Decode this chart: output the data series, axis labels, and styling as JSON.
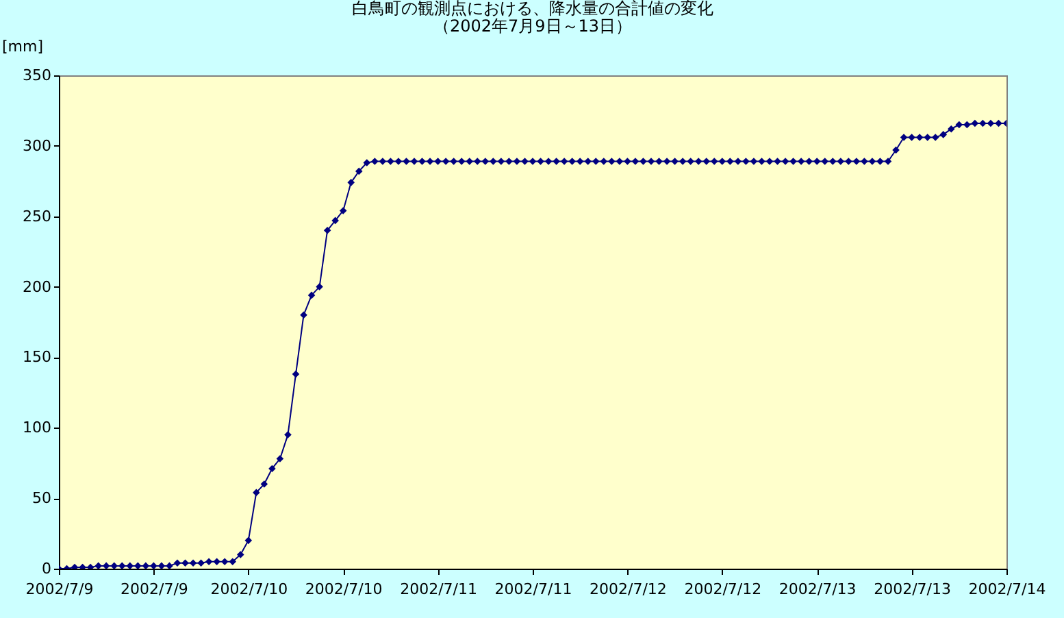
{
  "chart_data": {
    "type": "line",
    "title": "白鳥町の観測点における、降水量の合計値の変化",
    "subtitle": "（2002年7月9日～13日）",
    "ylabel": "[mm]",
    "x": [
      "2002-07-09T00:00",
      "2002-07-09T01:00",
      "2002-07-09T02:00",
      "2002-07-09T03:00",
      "2002-07-09T04:00",
      "2002-07-09T05:00",
      "2002-07-09T06:00",
      "2002-07-09T07:00",
      "2002-07-09T08:00",
      "2002-07-09T09:00",
      "2002-07-09T10:00",
      "2002-07-09T11:00",
      "2002-07-09T12:00",
      "2002-07-09T13:00",
      "2002-07-09T14:00",
      "2002-07-09T15:00",
      "2002-07-09T16:00",
      "2002-07-09T17:00",
      "2002-07-09T18:00",
      "2002-07-09T19:00",
      "2002-07-09T20:00",
      "2002-07-09T21:00",
      "2002-07-09T22:00",
      "2002-07-09T23:00",
      "2002-07-10T00:00",
      "2002-07-10T01:00",
      "2002-07-10T02:00",
      "2002-07-10T03:00",
      "2002-07-10T04:00",
      "2002-07-10T05:00",
      "2002-07-10T06:00",
      "2002-07-10T07:00",
      "2002-07-10T08:00",
      "2002-07-10T09:00",
      "2002-07-10T10:00",
      "2002-07-10T11:00",
      "2002-07-10T12:00",
      "2002-07-10T13:00",
      "2002-07-10T14:00",
      "2002-07-10T15:00",
      "2002-07-10T16:00",
      "2002-07-10T17:00",
      "2002-07-10T18:00",
      "2002-07-10T19:00",
      "2002-07-10T20:00",
      "2002-07-10T21:00",
      "2002-07-10T22:00",
      "2002-07-10T23:00",
      "2002-07-11T00:00",
      "2002-07-11T01:00",
      "2002-07-11T02:00",
      "2002-07-11T03:00",
      "2002-07-11T04:00",
      "2002-07-11T05:00",
      "2002-07-11T06:00",
      "2002-07-11T07:00",
      "2002-07-11T08:00",
      "2002-07-11T09:00",
      "2002-07-11T10:00",
      "2002-07-11T11:00",
      "2002-07-11T12:00",
      "2002-07-11T13:00",
      "2002-07-11T14:00",
      "2002-07-11T15:00",
      "2002-07-11T16:00",
      "2002-07-11T17:00",
      "2002-07-11T18:00",
      "2002-07-11T19:00",
      "2002-07-11T20:00",
      "2002-07-11T21:00",
      "2002-07-11T22:00",
      "2002-07-11T23:00",
      "2002-07-12T00:00",
      "2002-07-12T01:00",
      "2002-07-12T02:00",
      "2002-07-12T03:00",
      "2002-07-12T04:00",
      "2002-07-12T05:00",
      "2002-07-12T06:00",
      "2002-07-12T07:00",
      "2002-07-12T08:00",
      "2002-07-12T09:00",
      "2002-07-12T10:00",
      "2002-07-12T11:00",
      "2002-07-12T12:00",
      "2002-07-12T13:00",
      "2002-07-12T14:00",
      "2002-07-12T15:00",
      "2002-07-12T16:00",
      "2002-07-12T17:00",
      "2002-07-12T18:00",
      "2002-07-12T19:00",
      "2002-07-12T20:00",
      "2002-07-12T21:00",
      "2002-07-12T22:00",
      "2002-07-12T23:00",
      "2002-07-13T00:00",
      "2002-07-13T01:00",
      "2002-07-13T02:00",
      "2002-07-13T03:00",
      "2002-07-13T04:00",
      "2002-07-13T05:00",
      "2002-07-13T06:00",
      "2002-07-13T07:00",
      "2002-07-13T08:00",
      "2002-07-13T09:00",
      "2002-07-13T10:00",
      "2002-07-13T11:00",
      "2002-07-13T12:00",
      "2002-07-13T13:00",
      "2002-07-13T14:00",
      "2002-07-13T15:00",
      "2002-07-13T16:00",
      "2002-07-13T17:00",
      "2002-07-13T18:00",
      "2002-07-13T19:00",
      "2002-07-13T20:00",
      "2002-07-13T21:00",
      "2002-07-13T22:00",
      "2002-07-13T23:00",
      "2002-07-14T00:00"
    ],
    "series": [
      {
        "color": "#000080",
        "values": [
          0,
          0,
          1,
          1,
          1,
          2,
          2,
          2,
          2,
          2,
          2,
          2,
          2,
          2,
          2,
          4,
          4,
          4,
          4,
          5,
          5,
          5,
          5,
          10,
          20,
          54,
          60,
          71,
          78,
          95,
          138,
          180,
          194,
          200,
          240,
          247,
          254,
          274,
          282,
          288,
          289,
          289,
          289,
          289,
          289,
          289,
          289,
          289,
          289,
          289,
          289,
          289,
          289,
          289,
          289,
          289,
          289,
          289,
          289,
          289,
          289,
          289,
          289,
          289,
          289,
          289,
          289,
          289,
          289,
          289,
          289,
          289,
          289,
          289,
          289,
          289,
          289,
          289,
          289,
          289,
          289,
          289,
          289,
          289,
          289,
          289,
          289,
          289,
          289,
          289,
          289,
          289,
          289,
          289,
          289,
          289,
          289,
          289,
          289,
          289,
          289,
          289,
          289,
          289,
          289,
          289,
          297,
          306,
          306,
          306,
          306,
          306,
          308,
          312,
          315,
          315,
          316,
          316,
          316,
          316,
          316
        ]
      }
    ],
    "marker": "diamond",
    "grid": false,
    "xlim": [
      "2002-07-09T00:00",
      "2002-07-14T00:00"
    ],
    "xticks": [
      {
        "value": "2002-07-09T00:00",
        "label": "2002/7/9"
      },
      {
        "value": "2002-07-09T12:00",
        "label": "2002/7/9"
      },
      {
        "value": "2002-07-10T00:00",
        "label": "2002/7/10"
      },
      {
        "value": "2002-07-10T12:00",
        "label": "2002/7/10"
      },
      {
        "value": "2002-07-11T00:00",
        "label": "2002/7/11"
      },
      {
        "value": "2002-07-11T12:00",
        "label": "2002/7/11"
      },
      {
        "value": "2002-07-12T00:00",
        "label": "2002/7/12"
      },
      {
        "value": "2002-07-12T12:00",
        "label": "2002/7/12"
      },
      {
        "value": "2002-07-13T00:00",
        "label": "2002/7/13"
      },
      {
        "value": "2002-07-13T12:00",
        "label": "2002/7/13"
      },
      {
        "value": "2002-07-14T00:00",
        "label": "2002/7/14"
      }
    ],
    "ylim": [
      0,
      350
    ],
    "yticks": [
      0,
      50,
      100,
      150,
      200,
      250,
      300,
      350
    ]
  }
}
